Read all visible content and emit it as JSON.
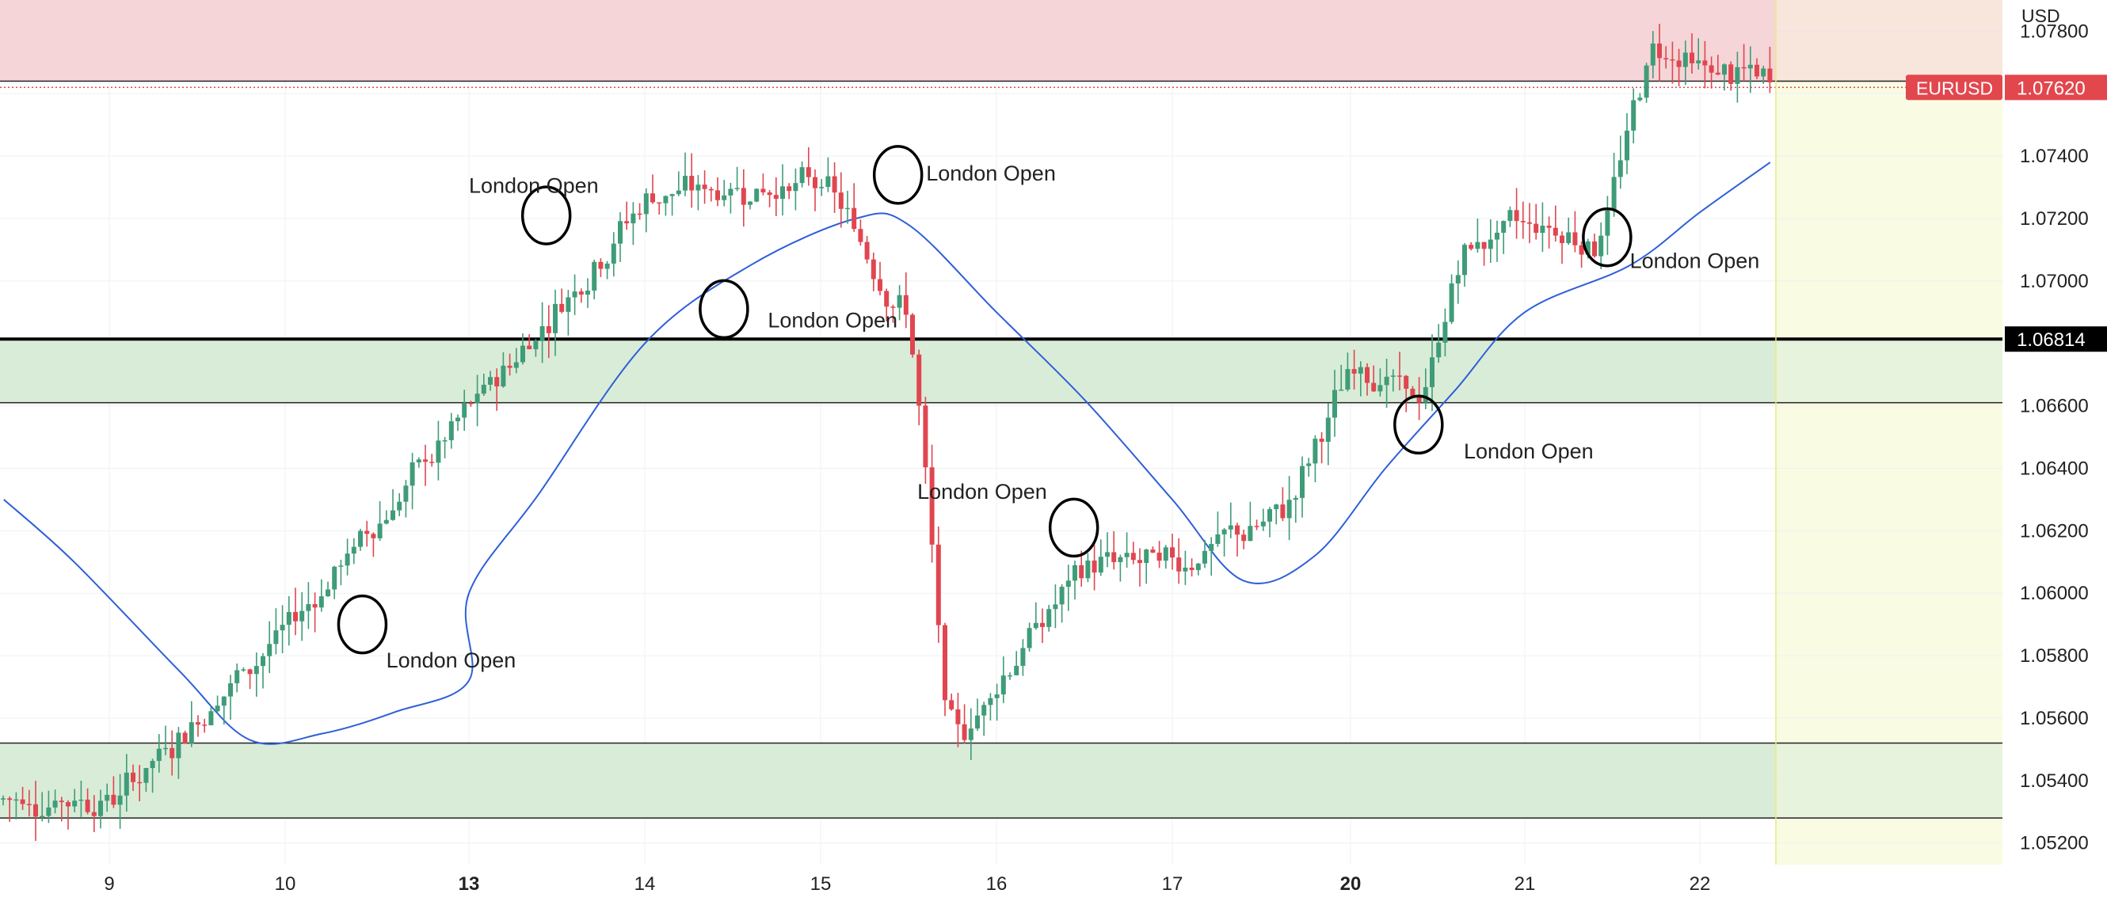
{
  "chart_data": {
    "type": "candlestick",
    "symbol": "EURUSD",
    "currency": "USD",
    "last_price": "1.07620",
    "price_line_label": "1.06814",
    "x_ticks": [
      "9",
      "10",
      "13",
      "14",
      "15",
      "16",
      "17",
      "20",
      "21",
      "22"
    ],
    "bold_x_ticks": [
      "13",
      "20"
    ],
    "y_ticks": [
      "1.07800",
      "1.07400",
      "1.07200",
      "1.07000",
      "1.06600",
      "1.06400",
      "1.06200",
      "1.06000",
      "1.05800",
      "1.05600",
      "1.05400",
      "1.05200"
    ],
    "y_range": [
      1.0508,
      1.079
    ],
    "colors": {
      "up": "#26a69a",
      "up_body": "#3f9c78",
      "down": "#e0464f",
      "moving_average": "#2f5fd8",
      "supply_zone": "#f5d5d7",
      "demand_zone": "#d9ecd8",
      "future_area": "#fafbe3",
      "label_red": "#e2474e",
      "label_black": "#000000"
    },
    "zones": [
      {
        "kind": "supply",
        "top": 1.079,
        "bottom": 1.0764
      },
      {
        "kind": "demand",
        "top": 1.06814,
        "bottom": 1.0661
      },
      {
        "kind": "demand",
        "top": 1.0552,
        "bottom": 1.0528
      }
    ],
    "horizontal_lines": [
      {
        "price": 1.06814,
        "style": "bold"
      },
      {
        "price": 1.0764,
        "style": "thin"
      },
      {
        "price": 1.0661,
        "style": "thin"
      },
      {
        "price": 1.0552,
        "style": "thin"
      },
      {
        "price": 1.0528,
        "style": "thin"
      },
      {
        "price": 1.0762,
        "style": "dotted-red"
      }
    ],
    "anchors": [
      {
        "day": "9",
        "price": 1.0534
      },
      {
        "day": "10",
        "price": 1.059
      },
      {
        "day": "13",
        "price": 1.066
      },
      {
        "day": "14",
        "price": 1.0728
      },
      {
        "day": "15",
        "price": 1.0731
      },
      {
        "day": "15.5",
        "price": 1.0685
      },
      {
        "day": "15.7",
        "price": 1.0545
      },
      {
        "day": "16",
        "price": 1.0575
      },
      {
        "day": "16.5",
        "price": 1.061
      },
      {
        "day": "17",
        "price": 1.061
      },
      {
        "day": "17.6",
        "price": 1.0625
      },
      {
        "day": "20",
        "price": 1.0675
      },
      {
        "day": "20.4",
        "price": 1.066
      },
      {
        "day": "20.6",
        "price": 1.071
      },
      {
        "day": "21",
        "price": 1.072
      },
      {
        "day": "21.4",
        "price": 1.0712
      },
      {
        "day": "21.7",
        "price": 1.0778
      },
      {
        "day": "22",
        "price": 1.0767
      },
      {
        "day": "22.4",
        "price": 1.0764
      }
    ],
    "moving_average": [
      {
        "day": "8.4",
        "price": 1.063
      },
      {
        "day": "8.8",
        "price": 1.061
      },
      {
        "day": "9.4",
        "price": 1.0575
      },
      {
        "day": "9.8",
        "price": 1.0553
      },
      {
        "day": "10.2",
        "price": 1.0555
      },
      {
        "day": "10.6",
        "price": 1.0562
      },
      {
        "day": "11",
        "price": 1.0572
      },
      {
        "day": "13",
        "price": 1.06
      },
      {
        "day": "13.4",
        "price": 1.0632
      },
      {
        "day": "14",
        "price": 1.068
      },
      {
        "day": "14.6",
        "price": 1.0705
      },
      {
        "day": "15.2",
        "price": 1.072
      },
      {
        "day": "15.5",
        "price": 1.0718
      },
      {
        "day": "16",
        "price": 1.069
      },
      {
        "day": "16.5",
        "price": 1.0662
      },
      {
        "day": "17",
        "price": 1.063
      },
      {
        "day": "17.4",
        "price": 1.0604
      },
      {
        "day": "17.8",
        "price": 1.0612
      },
      {
        "day": "20.2",
        "price": 1.064
      },
      {
        "day": "20.6",
        "price": 1.0665
      },
      {
        "day": "21",
        "price": 1.069
      },
      {
        "day": "21.6",
        "price": 1.0705
      },
      {
        "day": "22",
        "price": 1.0722
      },
      {
        "day": "22.4",
        "price": 1.0738
      }
    ],
    "annotations": [
      {
        "text": "London Open",
        "day": "10.55",
        "price": 1.0578,
        "align": "left"
      },
      {
        "text": "London Open",
        "day": "12.15",
        "price": 1.073,
        "align": "left"
      },
      {
        "text": "London Open",
        "day": "14.7",
        "price": 1.0687,
        "align": "left"
      },
      {
        "text": "London Open",
        "day": "15.6",
        "price": 1.0734,
        "align": "left"
      },
      {
        "text": "London Open",
        "day": "15.55",
        "price": 1.0632,
        "align": "left"
      },
      {
        "text": "London Open",
        "day": "20.65",
        "price": 1.0645,
        "align": "left"
      },
      {
        "text": "London Open",
        "day": "21.6",
        "price": 1.0706,
        "align": "left"
      }
    ],
    "circles": [
      {
        "day": "10.42",
        "price": 1.059
      },
      {
        "day": "13.44",
        "price": 1.0721
      },
      {
        "day": "14.45",
        "price": 1.0691
      },
      {
        "day": "15.44",
        "price": 1.0734
      },
      {
        "day": "16.44",
        "price": 1.0621
      },
      {
        "day": "20.39",
        "price": 1.0654
      },
      {
        "day": "21.47",
        "price": 1.0714
      }
    ]
  }
}
